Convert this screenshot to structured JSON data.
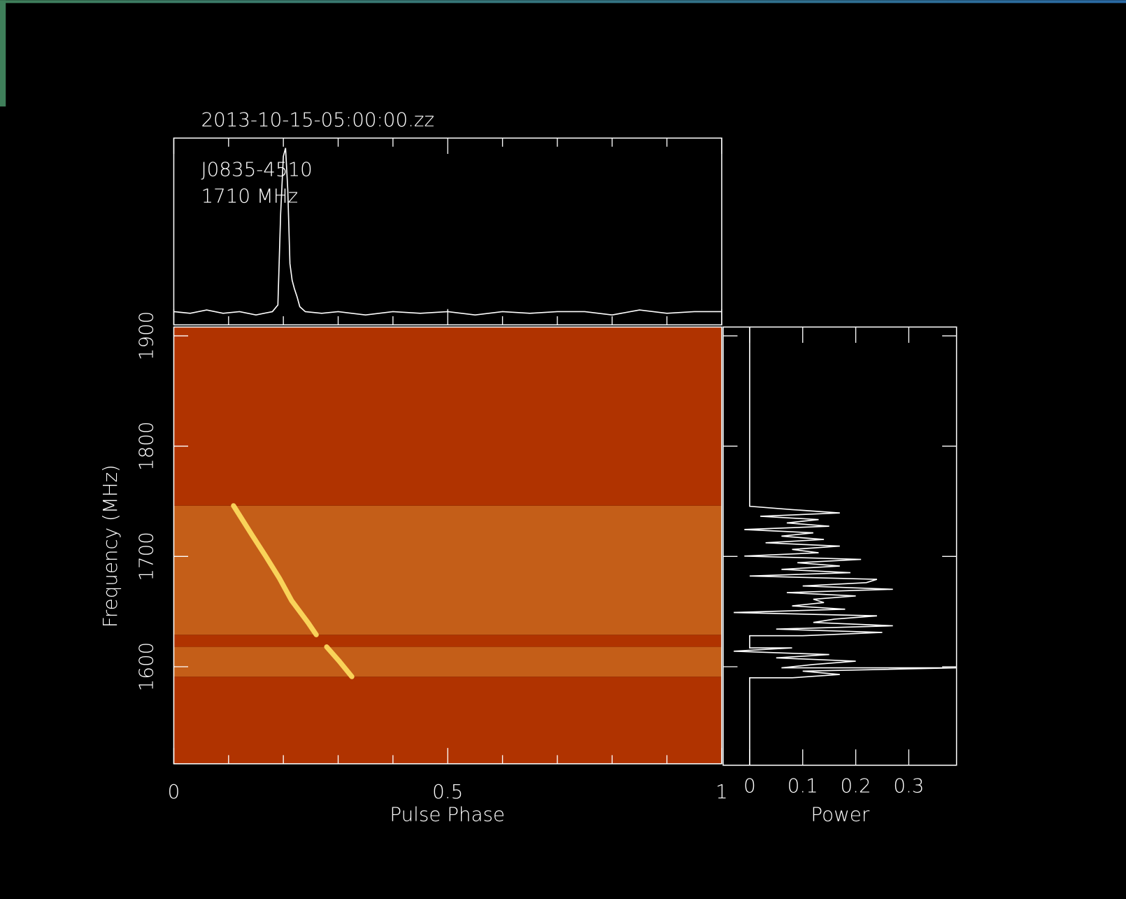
{
  "chart_data": [
    {
      "type": "line",
      "title": "2013-10-15-05:00:00.zz",
      "annotations": [
        "J0835-4510",
        "1710 MHz"
      ],
      "x": [
        0,
        0.03,
        0.06,
        0.09,
        0.12,
        0.15,
        0.18,
        0.19,
        0.195,
        0.2,
        0.204,
        0.208,
        0.212,
        0.216,
        0.22,
        0.225,
        0.23,
        0.24,
        0.27,
        0.3,
        0.35,
        0.4,
        0.45,
        0.5,
        0.55,
        0.6,
        0.65,
        0.7,
        0.75,
        0.8,
        0.85,
        0.9,
        0.95,
        1
      ],
      "values": [
        0.01,
        0,
        0.02,
        0,
        0.01,
        -0.01,
        0.01,
        0.05,
        0.6,
        0.95,
        1,
        0.75,
        0.3,
        0.2,
        0.15,
        0.1,
        0.04,
        0.01,
        0,
        0.01,
        -0.01,
        0.01,
        0,
        0.01,
        -0.01,
        0.01,
        0,
        0.01,
        0.01,
        -0.01,
        0.02,
        0,
        0.01,
        0.01
      ],
      "xlim": [
        0,
        1
      ],
      "ylim": [
        -0.07,
        1.06
      ],
      "color": "#ffffff"
    },
    {
      "type": "heatmap",
      "xlabel": "Pulse Phase",
      "ylabel": "Frequency (MHz)",
      "xlim": [
        0,
        1
      ],
      "xticks": [
        0,
        0.5,
        1
      ],
      "xminorticks": [
        0.1,
        0.2,
        0.3,
        0.4,
        0.6,
        0.7,
        0.8,
        0.9
      ],
      "ylim": [
        1512,
        1908
      ],
      "yticks": [
        1600,
        1700,
        1800,
        1900
      ],
      "ybins": [
        1512,
        1591,
        1618,
        1629,
        1746,
        1908
      ],
      "levels": [
        0,
        0.25,
        0,
        0.25,
        0
      ],
      "colors": [
        "#b03300",
        "#ffe060"
      ],
      "pulse": {
        "x": [
          0.109,
          0.142,
          0.168,
          0.193,
          0.215,
          0.245,
          0.26,
          null,
          0.279,
          0.302,
          0.325
        ],
        "y": [
          1746,
          1720,
          1700,
          1680,
          1660,
          1640,
          1629,
          null,
          1618,
          1605,
          1591
        ],
        "level": 1
      }
    },
    {
      "type": "line",
      "orientation": "horizontal",
      "xlabel": "Power",
      "y": [
        1512,
        1591,
        1591,
        1594,
        1597,
        1600,
        1600,
        1603,
        1606,
        1609,
        1612,
        1615,
        1618,
        1618,
        1629,
        1629,
        1632,
        1635,
        1638,
        1641,
        1644,
        1647,
        1650,
        1653,
        1656,
        1659,
        1662,
        1665,
        1668,
        1671,
        1674,
        1677,
        1680,
        1683,
        1686,
        1689,
        1692,
        1695,
        1698,
        1701,
        1704,
        1707,
        1710,
        1713,
        1716,
        1719,
        1722,
        1725,
        1728,
        1731,
        1734,
        1737,
        1740,
        1743,
        1746,
        1908
      ],
      "values": [
        0,
        0,
        0.08,
        0.17,
        0.1,
        0.39,
        0.06,
        0.12,
        0.2,
        0.05,
        0.15,
        -0.03,
        0.08,
        0,
        0,
        0.1,
        0.25,
        0.05,
        0.27,
        0.12,
        0.16,
        0.24,
        -0.03,
        0.18,
        0.08,
        0.14,
        0.12,
        0.2,
        0.07,
        0.27,
        0.1,
        0.22,
        0.24,
        0,
        0.19,
        0.06,
        0.17,
        0.09,
        0.21,
        -0.01,
        0.13,
        0.08,
        0.17,
        0.03,
        0.14,
        0.06,
        0.12,
        -0.01,
        0.15,
        0.07,
        0.13,
        0.02,
        0.17,
        0.08,
        0,
        0
      ],
      "xlim": [
        -0.05,
        0.39
      ],
      "xticks": [
        0,
        0.1,
        0.2,
        0.3
      ],
      "ylim": [
        1512,
        1908
      ],
      "color": "#ffffff"
    }
  ]
}
